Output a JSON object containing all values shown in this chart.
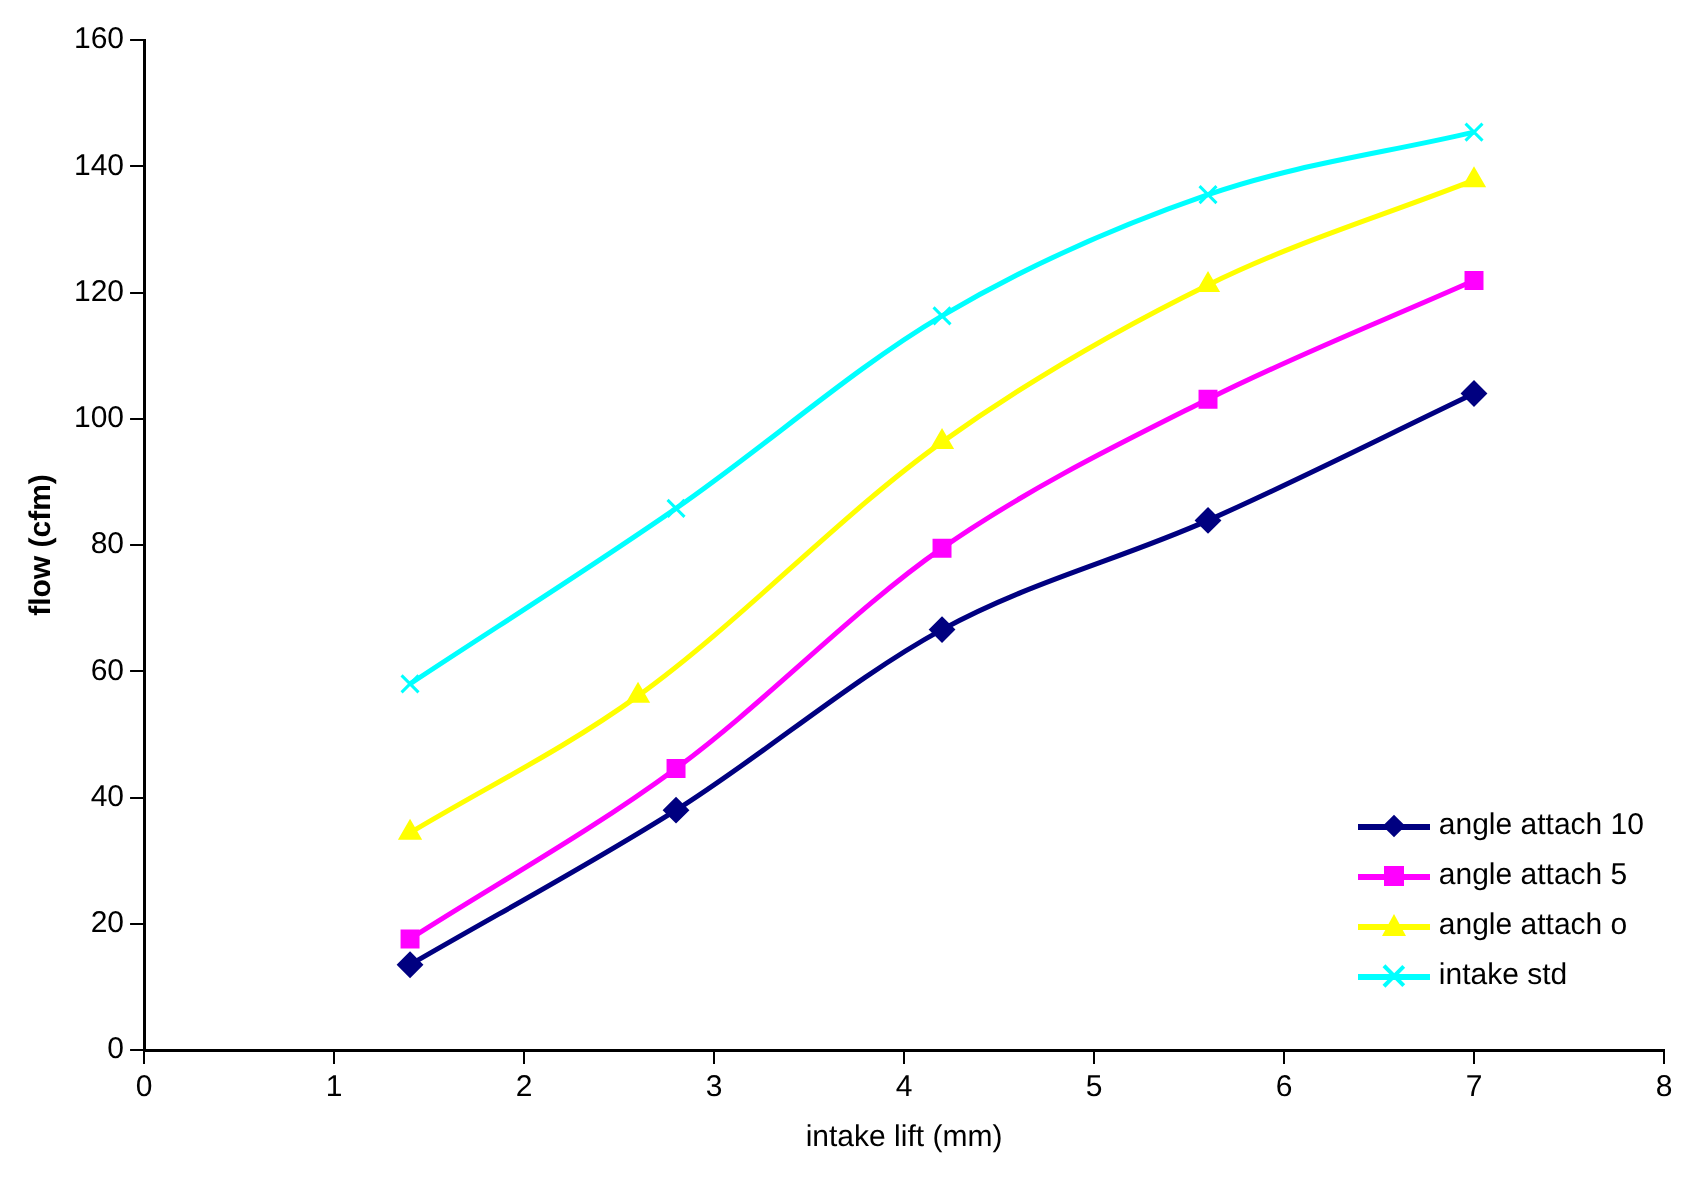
{
  "chart_data": {
    "type": "line",
    "xlabel": "intake lift (mm)",
    "ylabel": "flow (cfm)",
    "xlim": [
      0,
      8
    ],
    "xticks": [
      0,
      1,
      2,
      3,
      4,
      5,
      6,
      7,
      8
    ],
    "ylim": [
      0,
      160
    ],
    "yticks": [
      0,
      20,
      40,
      60,
      80,
      100,
      120,
      140,
      160
    ],
    "grid": false,
    "legend": "bottom right",
    "series": [
      {
        "name": "angle attach 10",
        "color": "#000080",
        "marker": "diamond",
        "x": [
          1.4,
          2.8,
          4.2,
          5.6,
          7.0
        ],
        "values": [
          13.5,
          38,
          66.6,
          83.9,
          104
        ]
      },
      {
        "name": "angle attach 5",
        "color": "#ff00ff",
        "marker": "square",
        "x": [
          1.4,
          2.8,
          4.2,
          5.6,
          7.0
        ],
        "values": [
          17.6,
          44.6,
          79.5,
          103.1,
          121.9
        ]
      },
      {
        "name": "angle attach o",
        "color": "#ffff00",
        "marker": "triangle",
        "x": [
          1.4,
          2.6,
          4.2,
          5.6,
          7.0
        ],
        "values": [
          34.4,
          56.1,
          96.3,
          121.2,
          137.8
        ]
      },
      {
        "name": "intake std",
        "color": "#00ffff",
        "marker": "cross",
        "x": [
          1.4,
          2.8,
          4.2,
          5.6,
          7.0
        ],
        "values": [
          58,
          85.8,
          116.3,
          135.5,
          145.4
        ]
      }
    ]
  }
}
